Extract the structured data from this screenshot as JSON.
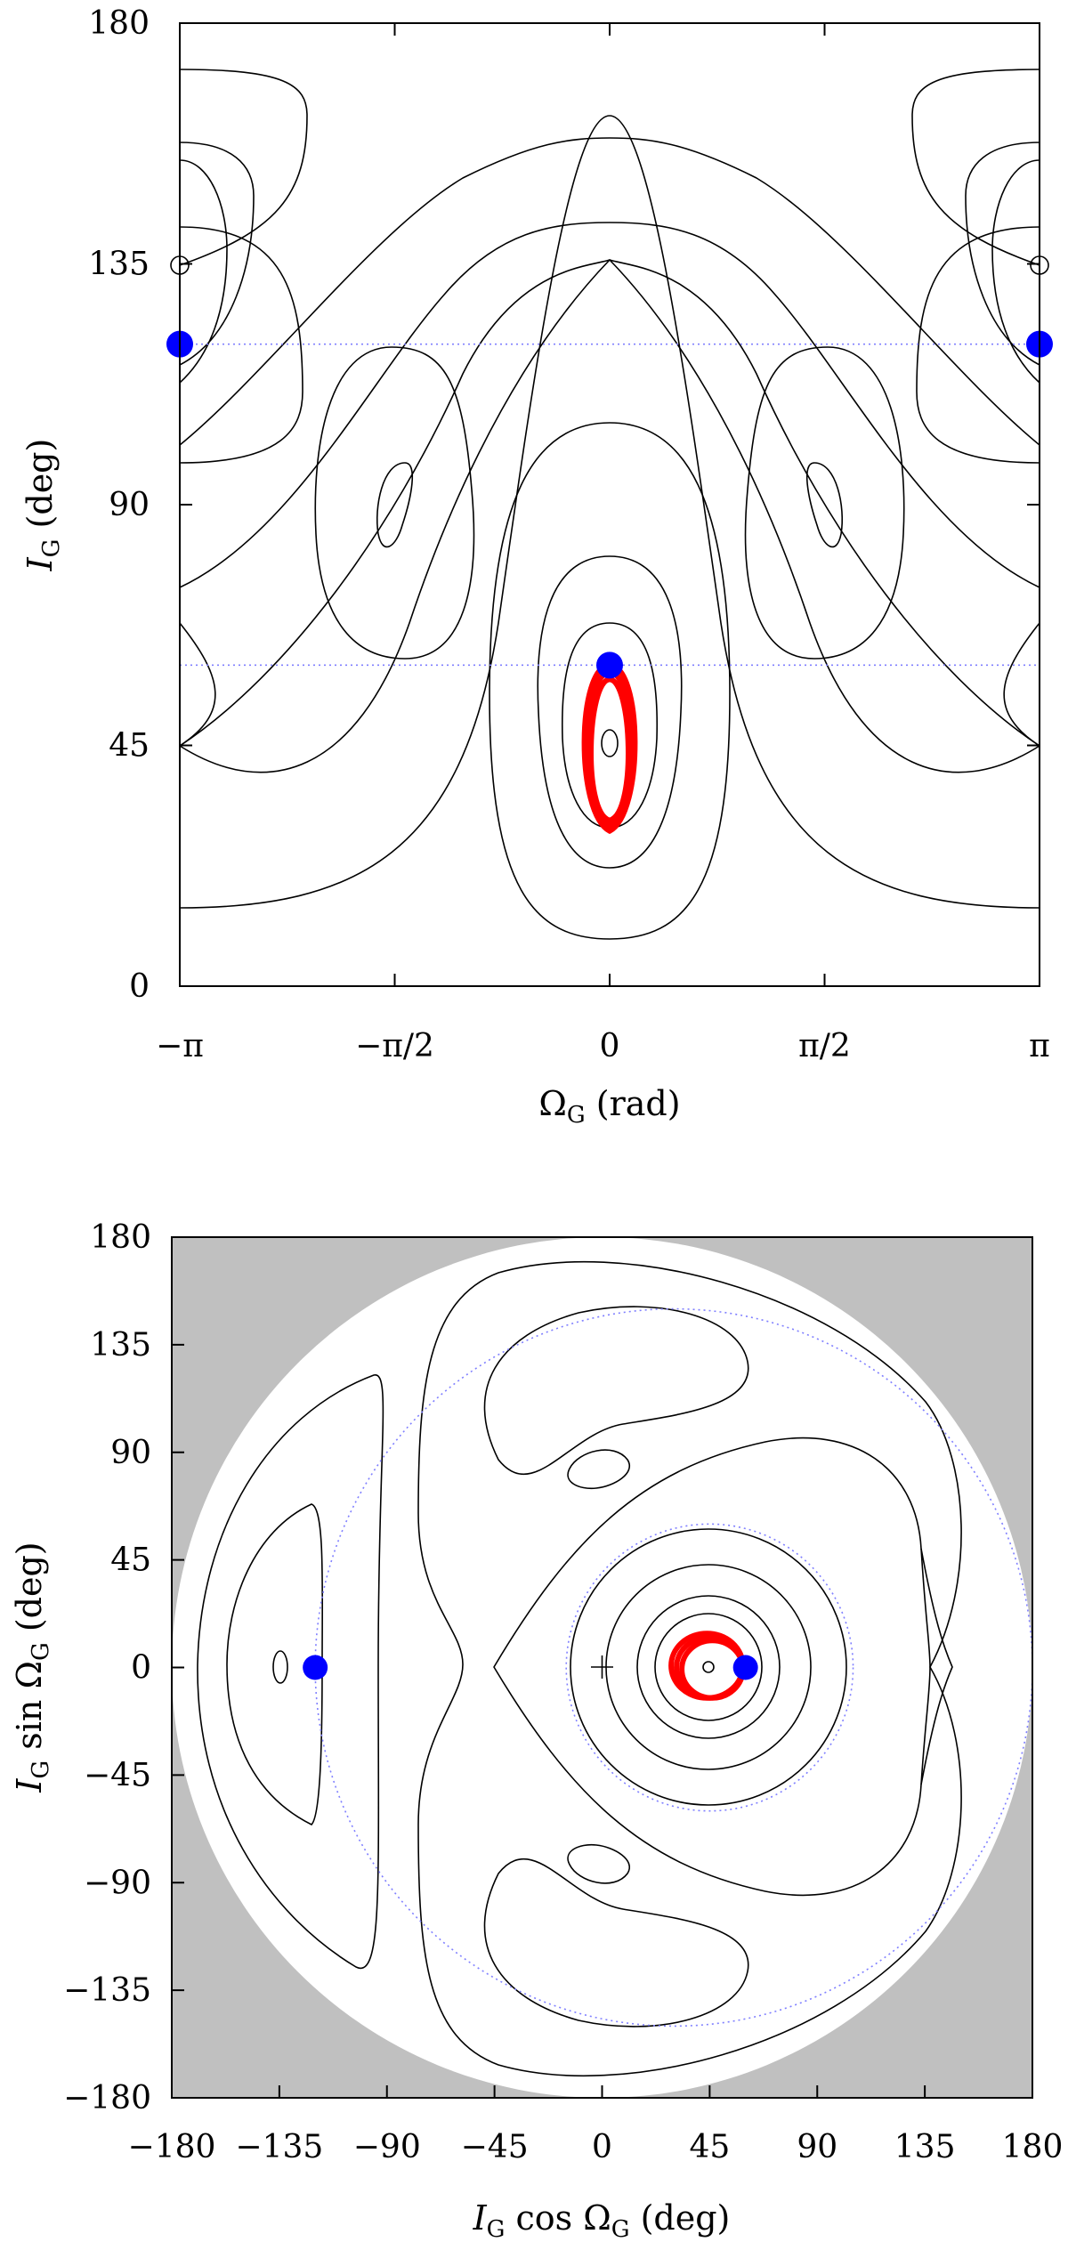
{
  "chart_data": [
    {
      "type": "line",
      "xlabel_parts": [
        "Ω",
        "G",
        " (rad)"
      ],
      "ylabel_parts": [
        "I",
        "G",
        " (deg)"
      ],
      "xlim": [
        -3.14159,
        3.14159
      ],
      "ylim": [
        0,
        180
      ],
      "x_ticks": [
        {
          "value": -3.14159,
          "label": "−π"
        },
        {
          "value": -1.5708,
          "label": "−π/2"
        },
        {
          "value": 0,
          "label": "0"
        },
        {
          "value": 1.5708,
          "label": "π/2"
        },
        {
          "value": 3.14159,
          "label": "π"
        }
      ],
      "y_ticks": [
        {
          "value": 0,
          "label": "0"
        },
        {
          "value": 45,
          "label": "45"
        },
        {
          "value": 90,
          "label": "90"
        },
        {
          "value": 135,
          "label": "135"
        },
        {
          "value": 180,
          "label": "180"
        }
      ],
      "reference_lines_deg": [
        120,
        60
      ],
      "blue_points": [
        {
          "x": -3.14159,
          "y": 120
        },
        {
          "x": 3.14159,
          "y": 120
        },
        {
          "x": 0,
          "y": 60
        }
      ],
      "red_orbit": {
        "center_x": 0,
        "center_y": 44,
        "width_x": 0.35,
        "y_min": 29,
        "y_max": 60
      },
      "grid": false,
      "colors": {
        "contour": "#000000",
        "orbit": "#ff0000",
        "points": "#0000ff",
        "guides": "#7f7fff"
      }
    },
    {
      "type": "line",
      "xlabel_parts": [
        "I",
        "G",
        " cos Ω",
        "G",
        " (deg)"
      ],
      "ylabel_parts": [
        "I",
        "G",
        " sin Ω",
        "G",
        " (deg)"
      ],
      "xlim": [
        -180,
        180
      ],
      "ylim": [
        -180,
        180
      ],
      "x_ticks": [
        {
          "value": -180,
          "label": "−180"
        },
        {
          "value": -135,
          "label": "−135"
        },
        {
          "value": -90,
          "label": "−90"
        },
        {
          "value": -45,
          "label": "−45"
        },
        {
          "value": 0,
          "label": "0"
        },
        {
          "value": 45,
          "label": "45"
        },
        {
          "value": 90,
          "label": "90"
        },
        {
          "value": 135,
          "label": "135"
        },
        {
          "value": 180,
          "label": "180"
        }
      ],
      "y_ticks": [
        {
          "value": -180,
          "label": "−180"
        },
        {
          "value": -135,
          "label": "−135"
        },
        {
          "value": -90,
          "label": "−90"
        },
        {
          "value": -45,
          "label": "−45"
        },
        {
          "value": 0,
          "label": "0"
        },
        {
          "value": 45,
          "label": "45"
        },
        {
          "value": 90,
          "label": "90"
        },
        {
          "value": 135,
          "label": "135"
        },
        {
          "value": 180,
          "label": "180"
        }
      ],
      "reference_circles_deg": [
        60,
        120
      ],
      "blue_points": [
        {
          "x": -120,
          "y": 0
        },
        {
          "x": 60,
          "y": 0
        }
      ],
      "red_orbit": {
        "center_x": 45,
        "center_y": 0,
        "radius": 15
      },
      "grid": false,
      "colors": {
        "background": "#c0c0c0",
        "disc": "#ffffff",
        "contour": "#000000",
        "orbit": "#ff0000",
        "points": "#0000ff",
        "guides": "#7f7fff"
      }
    }
  ]
}
